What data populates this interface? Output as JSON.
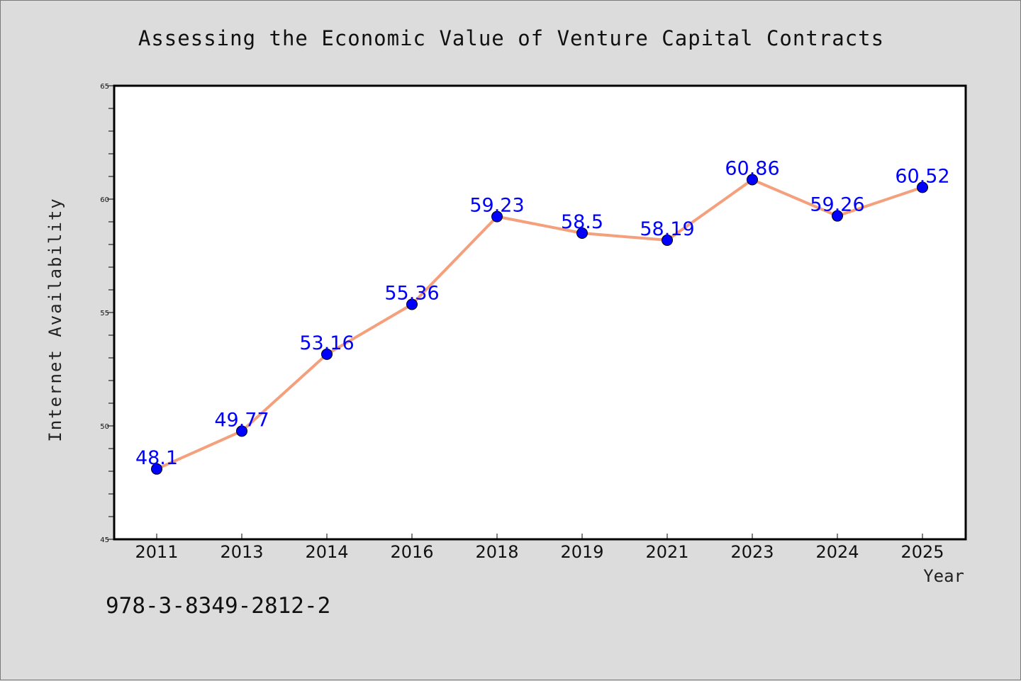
{
  "chart_data": {
    "type": "line",
    "title": "Assessing the Economic Value of Venture Capital Contracts",
    "xlabel": "Year",
    "ylabel": "Internet Availability",
    "categories": [
      "2011",
      "2013",
      "2014",
      "2016",
      "2018",
      "2019",
      "2021",
      "2023",
      "2024",
      "2025"
    ],
    "values": [
      48.1,
      49.77,
      53.16,
      55.36,
      59.23,
      58.5,
      58.19,
      60.86,
      59.26,
      60.52
    ],
    "value_labels": [
      "48.1",
      "49.77",
      "53.16",
      "55.36",
      "59.23",
      "58.5",
      "58.19",
      "60.86",
      "59.26",
      "60.52"
    ],
    "ylim": [
      45,
      65
    ],
    "yticks": [
      45,
      50,
      55,
      60,
      65
    ],
    "grid": false,
    "legend": "none",
    "line_color": "#f4a07c",
    "marker_color": "#0000ff",
    "label_color": "#0000ff"
  },
  "footnote": "978-3-8349-2812-2"
}
